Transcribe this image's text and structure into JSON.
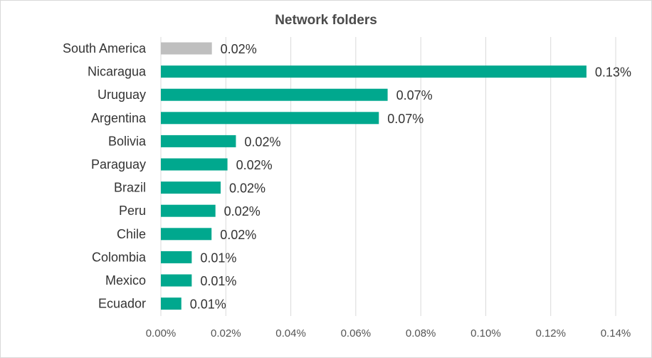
{
  "chart_data": {
    "type": "bar",
    "orientation": "horizontal",
    "title": "Network folders",
    "categories": [
      "South America",
      "Nicaragua",
      "Uruguay",
      "Argentina",
      "Bolivia",
      "Paraguay",
      "Brazil",
      "Peru",
      "Chile",
      "Colombia",
      "Mexico",
      "Ecuador"
    ],
    "values": [
      0.0157,
      0.131,
      0.0698,
      0.0671,
      0.0231,
      0.0205,
      0.0184,
      0.0168,
      0.0156,
      0.0095,
      0.0095,
      0.0063
    ],
    "data_labels": [
      "0.02%",
      "0.13%",
      "0.07%",
      "0.07%",
      "0.02%",
      "0.02%",
      "0.02%",
      "0.02%",
      "0.02%",
      "0.01%",
      "0.01%",
      "0.01%"
    ],
    "xticks": [
      "0.00%",
      "0.02%",
      "0.04%",
      "0.06%",
      "0.08%",
      "0.10%",
      "0.12%",
      "0.14%"
    ],
    "xlim": [
      0,
      0.14
    ],
    "grid": "vertical",
    "colors": {
      "region": "#bfbfbf",
      "country": "#00a88e",
      "grid": "#d9d9d9"
    }
  }
}
